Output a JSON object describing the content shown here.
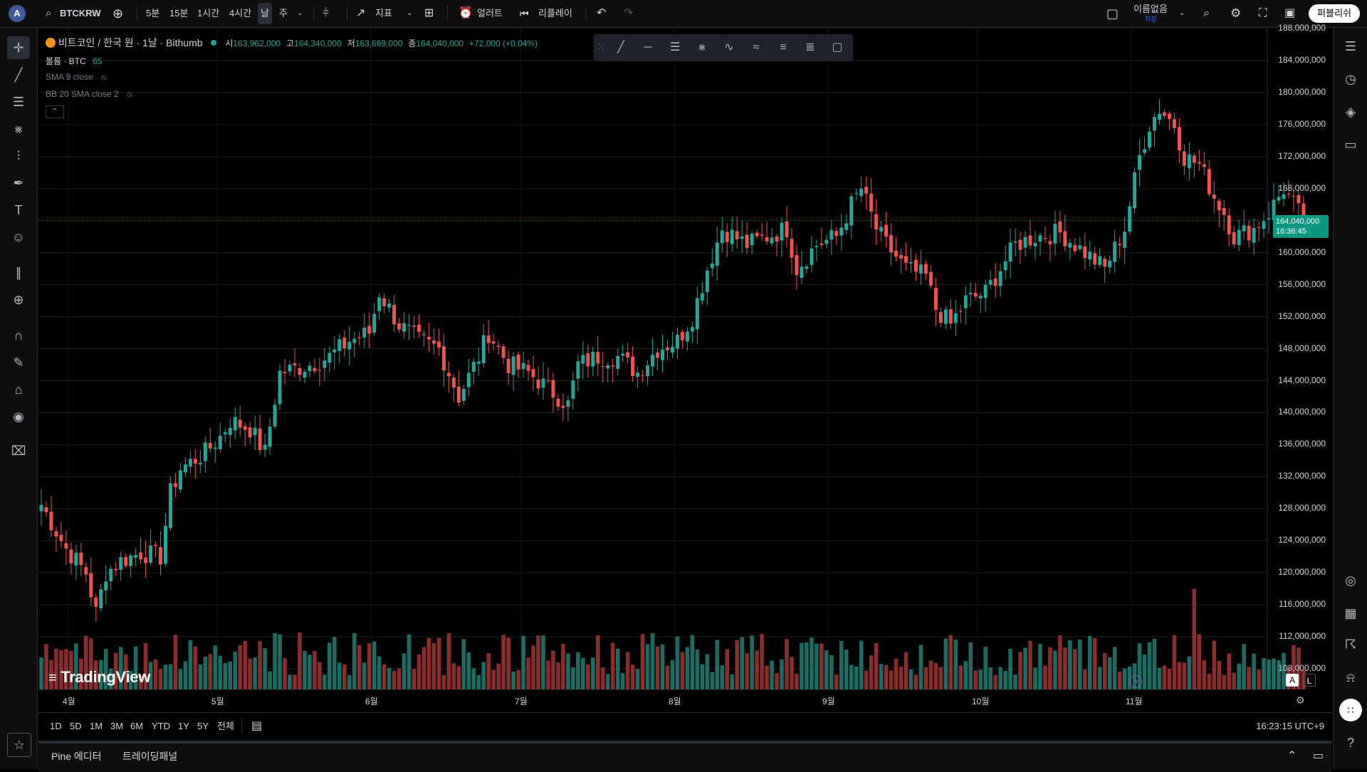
{
  "toolbar": {
    "avatar_letter": "A",
    "symbol": "BTCKRW",
    "intervals": [
      "5분",
      "15분",
      "1시간",
      "4시간",
      "날",
      "주"
    ],
    "active_interval": "날",
    "indicators_label": "지표",
    "alert_label": "얼러트",
    "replay_label": "리플레이",
    "layout_name": "이름없음",
    "layout_status": "저장",
    "publish_label": "퍼블리쉬"
  },
  "legend": {
    "title": "비트코인 / 한국 원 · 1날 · Bithumb",
    "open_label": "시",
    "open": "163,962,000",
    "high_label": "고",
    "high": "164,340,000",
    "low_label": "저",
    "low": "163,669,000",
    "close_label": "종",
    "close": "164,040,000",
    "change": "+72,000 (+0.04%)",
    "volume_label": "볼륨 · BTC",
    "volume_value": "65",
    "sma_label": "SMA 9 close",
    "bb_label": "BB 20 SMA close 2"
  },
  "price_axis": {
    "labels": [
      "188,000,000",
      "184,000,000",
      "180,000,000",
      "176,000,000",
      "172,000,000",
      "168,000,000",
      "160,000,000",
      "156,000,000",
      "152,000,000",
      "148,000,000",
      "144,000,000",
      "140,000,000",
      "136,000,000",
      "132,000,000",
      "128,000,000",
      "124,000,000",
      "120,000,000",
      "116,000,000",
      "112,000,000",
      "108,000,000"
    ],
    "last_price": "164,040,000",
    "countdown": "16:36:45",
    "scale_mode_a": "A",
    "scale_mode_l": "L"
  },
  "time_axis": {
    "months": [
      "4월",
      "5월",
      "6월",
      "7월",
      "8월",
      "9월",
      "10월",
      "11월"
    ]
  },
  "bottom": {
    "ranges": [
      "1D",
      "5D",
      "1M",
      "3M",
      "6M",
      "YTD",
      "1Y",
      "5Y",
      "전체"
    ],
    "clock": "16:23:15 UTC+9",
    "pine_label": "Pine 에디터",
    "trading_panel_label": "트레이딩패널"
  },
  "watermark": "TradingView",
  "colors": {
    "up": "#26a69a",
    "down": "#ef5350",
    "volume_up": "#1e6b63",
    "volume_down": "#8a2e2c",
    "last_price_badge": "#089981"
  },
  "chart_data": {
    "type": "candlestick",
    "title": "비트코인 / 한국 원 · 1날 · Bithumb",
    "y_range": [
      106000000,
      190000000
    ],
    "anchors_close": [
      [
        0,
        128500000
      ],
      [
        5,
        123000000
      ],
      [
        9,
        120000000
      ],
      [
        11,
        115000000
      ],
      [
        13,
        120000000
      ],
      [
        16,
        121500000
      ],
      [
        20,
        122500000
      ],
      [
        24,
        122000000
      ],
      [
        26,
        130000000
      ],
      [
        28,
        133000000
      ],
      [
        33,
        135000000
      ],
      [
        36,
        137000000
      ],
      [
        38,
        139000000
      ],
      [
        42,
        138000000
      ],
      [
        45,
        135000000
      ],
      [
        48,
        145000000
      ],
      [
        54,
        146000000
      ],
      [
        58,
        147000000
      ],
      [
        62,
        149000000
      ],
      [
        66,
        150000000
      ],
      [
        68,
        155000000
      ],
      [
        72,
        151000000
      ],
      [
        76,
        149000000
      ],
      [
        80,
        148000000
      ],
      [
        84,
        142000000
      ],
      [
        88,
        147000000
      ],
      [
        90,
        150000000
      ],
      [
        94,
        146000000
      ],
      [
        98,
        145000000
      ],
      [
        102,
        143000000
      ],
      [
        106,
        141000000
      ],
      [
        108,
        146000000
      ],
      [
        112,
        147000000
      ],
      [
        116,
        147000000
      ],
      [
        120,
        145000000
      ],
      [
        124,
        148000000
      ],
      [
        128,
        149000000
      ],
      [
        131,
        152000000
      ],
      [
        134,
        158000000
      ],
      [
        137,
        163000000
      ],
      [
        142,
        161000000
      ],
      [
        146,
        162000000
      ],
      [
        150,
        163000000
      ],
      [
        152,
        158000000
      ],
      [
        156,
        161000000
      ],
      [
        160,
        162000000
      ],
      [
        163,
        166000000
      ],
      [
        165,
        168000000
      ],
      [
        168,
        163000000
      ],
      [
        170,
        161000000
      ],
      [
        174,
        158000000
      ],
      [
        178,
        157000000
      ],
      [
        180,
        153000000
      ],
      [
        183,
        151000000
      ],
      [
        186,
        154000000
      ],
      [
        190,
        155000000
      ],
      [
        193,
        158000000
      ],
      [
        196,
        161000000
      ],
      [
        200,
        162000000
      ],
      [
        205,
        162500000
      ],
      [
        210,
        160000000
      ],
      [
        214,
        158000000
      ],
      [
        218,
        163000000
      ],
      [
        221,
        172000000
      ],
      [
        223,
        176000000
      ],
      [
        225,
        178000000
      ],
      [
        228,
        176000000
      ],
      [
        230,
        172000000
      ],
      [
        233,
        171000000
      ],
      [
        236,
        167000000
      ],
      [
        238,
        165000000
      ],
      [
        240,
        162000000
      ],
      [
        244,
        163000000
      ],
      [
        247,
        165000000
      ],
      [
        250,
        168000000
      ],
      [
        252,
        166000000
      ],
      [
        254,
        164000000
      ]
    ],
    "volume_range": [
      0,
      70
    ]
  }
}
